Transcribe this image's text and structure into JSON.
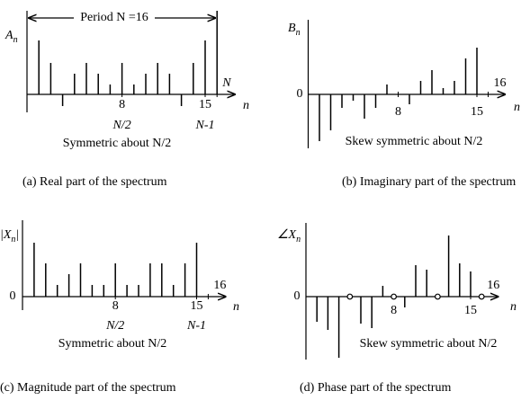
{
  "chart_data": [
    {
      "type": "stem",
      "caption": "(a) Real part of the spectrum",
      "y_label": [
        "A",
        "n"
      ],
      "x_label": "n",
      "x": [
        1,
        2,
        3,
        4,
        5,
        6,
        7,
        8,
        9,
        10,
        11,
        12,
        13,
        14,
        15
      ],
      "values": [
        60,
        35,
        -13,
        23,
        35,
        23,
        11,
        35,
        11,
        23,
        35,
        23,
        -13,
        35,
        60
      ],
      "xlim": [
        0,
        17.5
      ],
      "ylim": [
        -20,
        93
      ],
      "xticks": [
        8,
        15,
        {
          "value": 16,
          "label": "N"
        }
      ],
      "xtick_notes": [
        "N/2",
        "N-1"
      ],
      "period_label": "Period N =16",
      "note": "Symmetric about N/2",
      "color": "#000000"
    },
    {
      "type": "stem",
      "caption": "(b) Imaginary part of the spectrum",
      "y_label": [
        "B",
        "n"
      ],
      "x_label": "n",
      "x": [
        1,
        2,
        3,
        4,
        5,
        6,
        7,
        8,
        9,
        10,
        11,
        12,
        13,
        14,
        15
      ],
      "values": [
        -52,
        -40,
        -15,
        -7,
        -27,
        -15,
        11,
        0,
        -11,
        15,
        27,
        7,
        15,
        40,
        52
      ],
      "xlim": [
        0,
        17.5
      ],
      "ylim": [
        -60,
        83
      ],
      "yticks": [
        0
      ],
      "xticks": [
        8,
        15,
        16
      ],
      "note": "Skew symmetric about N/2",
      "color": "#000000"
    },
    {
      "type": "stem",
      "caption": "(c) Magnitude part of the spectrum",
      "y_label": [
        "|X",
        "n",
        "|"
      ],
      "x_label": "n",
      "x": [
        1,
        2,
        3,
        4,
        5,
        6,
        7,
        8,
        9,
        10,
        11,
        12,
        13,
        14,
        15
      ],
      "values": [
        60,
        37,
        13,
        25,
        37,
        13,
        13,
        37,
        13,
        13,
        37,
        37,
        13,
        37,
        60
      ],
      "xlim": [
        0,
        17.5
      ],
      "ylim": [
        -15,
        85
      ],
      "yticks": [
        0
      ],
      "xticks": [
        8,
        15,
        16
      ],
      "xtick_notes": [
        "N/2",
        "N-1"
      ],
      "note": "Symmetric about N/2",
      "color": "#000000"
    },
    {
      "type": "stem",
      "caption": "(d) Phase part of the spectrum",
      "y_label": [
        "∠X",
        "n"
      ],
      "x_label": "n",
      "x": [
        1,
        2,
        3,
        4,
        5,
        6,
        7,
        8,
        9,
        10,
        11,
        12,
        13,
        14,
        15,
        16
      ],
      "values": [
        -28,
        -37,
        -68,
        0,
        -30,
        -35,
        12,
        0,
        -12,
        35,
        30,
        0,
        68,
        37,
        28,
        0
      ],
      "xlim": [
        0,
        17.5
      ],
      "ylim": [
        -70,
        82
      ],
      "yticks": [
        0
      ],
      "zero_markers": true,
      "xticks": [
        8,
        15,
        16
      ],
      "note": "Skew symmetric about N/2",
      "color": "#000000"
    }
  ]
}
